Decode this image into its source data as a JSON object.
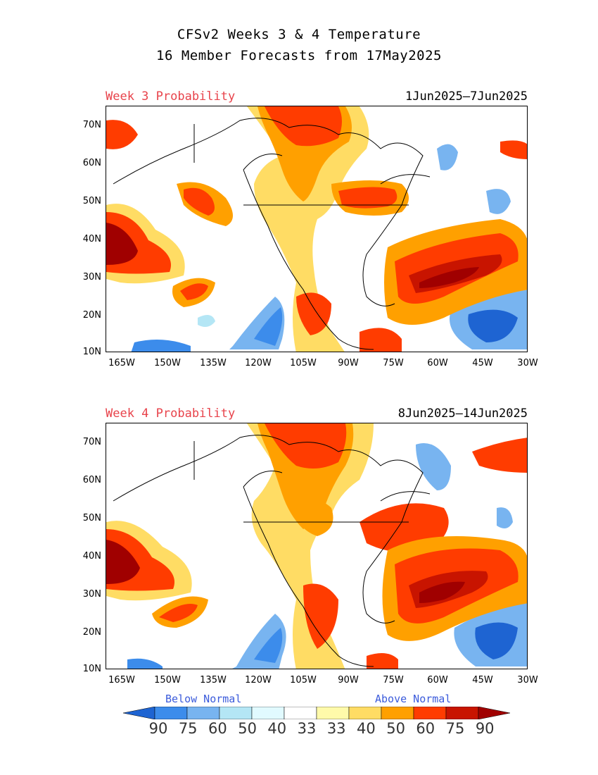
{
  "title": {
    "line1": "CFSv2 Weeks 3 & 4 Temperature",
    "line2": "16 Member Forecasts from 17May2025"
  },
  "panels": [
    {
      "label": "Week 3 Probability",
      "dates": "1Jun2025—7Jun2025"
    },
    {
      "label": "Week 4 Probability",
      "dates": "8Jun2025—14Jun2025"
    }
  ],
  "axes": {
    "lat_labels": [
      "70N",
      "60N",
      "50N",
      "40N",
      "30N",
      "20N",
      "10N"
    ],
    "lon_labels": [
      "165W",
      "150W",
      "135W",
      "120W",
      "105W",
      "90W",
      "75W",
      "60W",
      "45W",
      "30W"
    ]
  },
  "legend": {
    "below_label": "Below Normal",
    "above_label": "Above Normal",
    "values": [
      "90",
      "75",
      "60",
      "50",
      "40",
      "33",
      "33",
      "40",
      "50",
      "60",
      "75",
      "90"
    ],
    "colors": [
      "#1e64d2",
      "#3c8ceb",
      "#78b4f0",
      "#b4e6f5",
      "#e1faff",
      "#ffffff",
      "#fffaaa",
      "#ffdc64",
      "#ffa000",
      "#ff3c00",
      "#c81400",
      "#a00000"
    ]
  }
}
